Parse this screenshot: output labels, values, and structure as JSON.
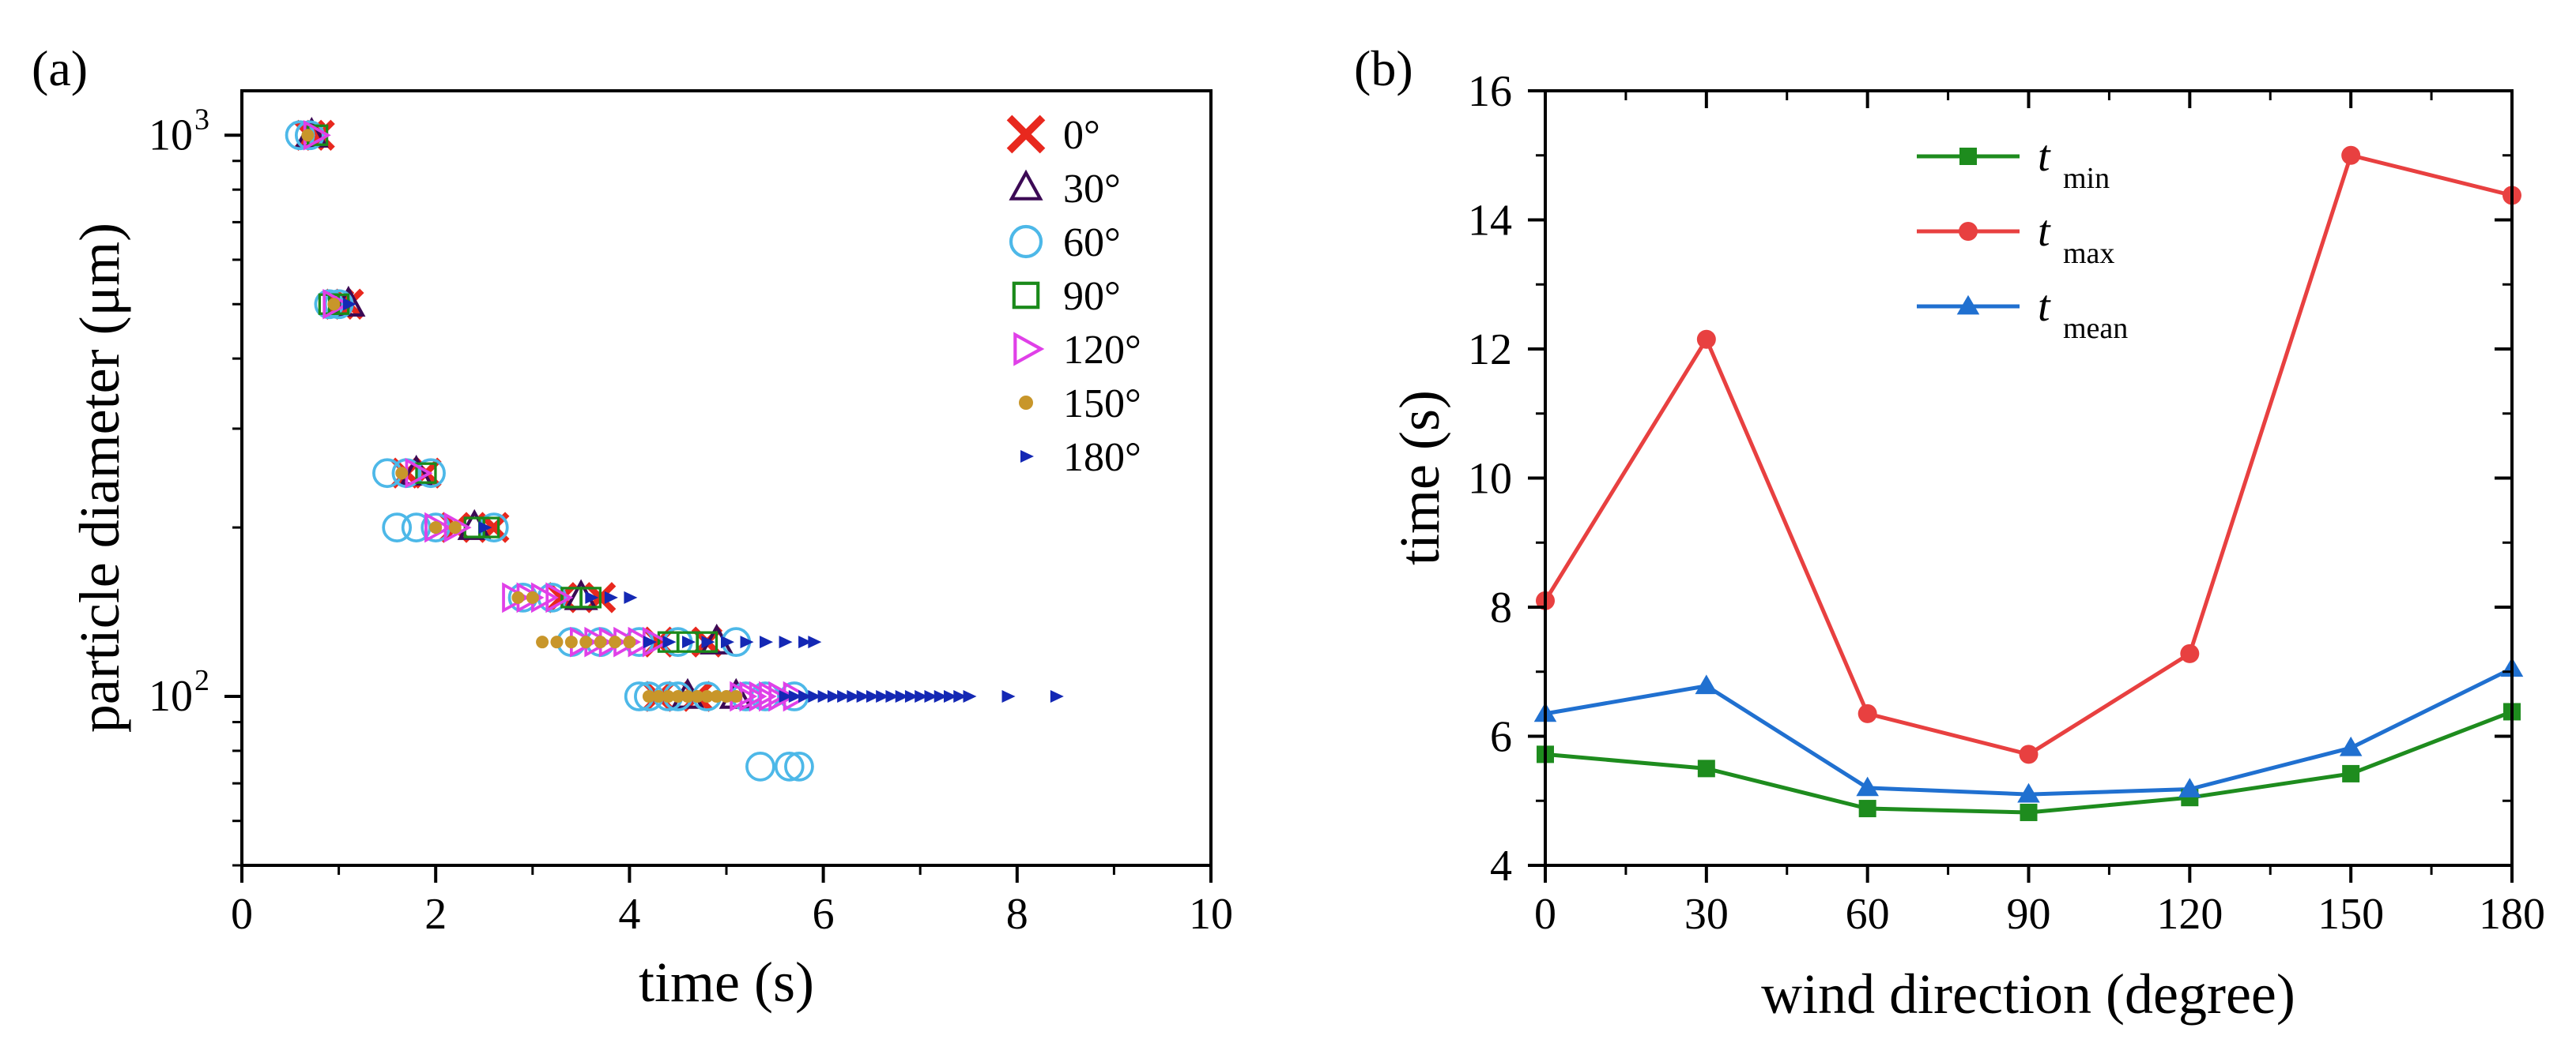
{
  "chart_data": [
    {
      "type": "scatter",
      "panel_label": "(a)",
      "xlabel": "time (s)",
      "ylabel": "particle diameter (μm)",
      "xlim": [
        0,
        10
      ],
      "ylim": [
        50,
        1200
      ],
      "yscale": "log",
      "xticks": [
        0,
        2,
        4,
        6,
        8,
        10
      ],
      "xtick_labels": [
        "0",
        "2",
        "4",
        "6",
        "8",
        "10"
      ],
      "yticks": [
        100,
        1000
      ],
      "ytick_labels": [
        [
          "10",
          "2"
        ],
        [
          "10",
          "3"
        ]
      ],
      "grid": false,
      "legend_position": "top-right",
      "series": [
        {
          "name": "0°",
          "marker": "x",
          "color": "#e8281e",
          "points": [
            [
              0.7,
              1000
            ],
            [
              0.8,
              1000
            ],
            [
              1.0,
              500
            ],
            [
              1.1,
              500
            ],
            [
              1.7,
              250
            ],
            [
              1.9,
              250
            ],
            [
              2.2,
              200
            ],
            [
              2.6,
              200
            ],
            [
              3.3,
              150
            ],
            [
              3.7,
              150
            ],
            [
              4.3,
              125
            ],
            [
              4.8,
              125
            ],
            [
              4.3,
              100
            ],
            [
              4.7,
              100
            ]
          ]
        },
        {
          "name": "30°",
          "marker": "triangle-open",
          "color": "#3c0a55",
          "points": [
            [
              0.72,
              1000
            ],
            [
              1.1,
              500
            ],
            [
              1.8,
              250
            ],
            [
              2.4,
              200
            ],
            [
              3.5,
              150
            ],
            [
              4.9,
              125
            ],
            [
              4.6,
              100
            ],
            [
              5.1,
              100
            ]
          ]
        },
        {
          "name": "60°",
          "marker": "circle-open",
          "color": "#4db8e8",
          "points": [
            [
              0.6,
              1000
            ],
            [
              0.7,
              1000
            ],
            [
              0.9,
              500
            ],
            [
              1.0,
              500
            ],
            [
              1.5,
              250
            ],
            [
              1.7,
              250
            ],
            [
              1.95,
              250
            ],
            [
              1.6,
              200
            ],
            [
              1.8,
              200
            ],
            [
              2.0,
              200
            ],
            [
              2.6,
              200
            ],
            [
              2.9,
              150
            ],
            [
              3.2,
              150
            ],
            [
              3.4,
              125
            ],
            [
              3.7,
              125
            ],
            [
              4.1,
              125
            ],
            [
              4.5,
              125
            ],
            [
              5.1,
              125
            ],
            [
              4.1,
              100
            ],
            [
              4.2,
              100
            ],
            [
              4.4,
              100
            ],
            [
              4.5,
              100
            ],
            [
              4.8,
              100
            ],
            [
              5.2,
              100
            ],
            [
              5.4,
              100
            ],
            [
              5.7,
              100
            ],
            [
              5.35,
              75
            ],
            [
              5.65,
              75
            ],
            [
              5.75,
              75
            ]
          ]
        },
        {
          "name": "90°",
          "marker": "square-open",
          "color": "#1a8a1a",
          "points": [
            [
              0.78,
              1000
            ],
            [
              0.9,
              500
            ],
            [
              1.0,
              500
            ],
            [
              1.9,
              250
            ],
            [
              2.4,
              200
            ],
            [
              2.55,
              200
            ],
            [
              3.4,
              150
            ],
            [
              3.6,
              150
            ],
            [
              4.4,
              125
            ],
            [
              4.6,
              125
            ],
            [
              4.8,
              125
            ]
          ]
        },
        {
          "name": "120°",
          "marker": "triangle-right-open",
          "color": "#e040e8",
          "points": [
            [
              0.75,
              1000
            ],
            [
              0.95,
              500
            ],
            [
              1.8,
              250
            ],
            [
              2.0,
              200
            ],
            [
              2.2,
              200
            ],
            [
              2.8,
              150
            ],
            [
              2.95,
              150
            ],
            [
              3.1,
              150
            ],
            [
              3.25,
              150
            ],
            [
              3.5,
              125
            ],
            [
              3.65,
              125
            ],
            [
              3.8,
              125
            ],
            [
              3.95,
              125
            ],
            [
              4.1,
              125
            ],
            [
              4.25,
              125
            ],
            [
              5.15,
              100
            ],
            [
              5.25,
              100
            ],
            [
              5.35,
              100
            ],
            [
              5.45,
              100
            ],
            [
              5.55,
              100
            ],
            [
              5.7,
              100
            ]
          ]
        },
        {
          "name": "150°",
          "marker": "dot",
          "color": "#c8962a",
          "points": [
            [
              0.68,
              1000
            ],
            [
              0.95,
              500
            ],
            [
              1.65,
              250
            ],
            [
              2.0,
              200
            ],
            [
              2.2,
              200
            ],
            [
              2.85,
              150
            ],
            [
              3.0,
              150
            ],
            [
              3.1,
              125
            ],
            [
              3.25,
              125
            ],
            [
              3.4,
              125
            ],
            [
              3.55,
              125
            ],
            [
              3.7,
              125
            ],
            [
              3.85,
              125
            ],
            [
              4.0,
              125
            ],
            [
              4.2,
              100
            ],
            [
              4.3,
              100
            ],
            [
              4.4,
              100
            ],
            [
              4.5,
              100
            ],
            [
              4.6,
              100
            ],
            [
              4.7,
              100
            ],
            [
              4.8,
              100
            ],
            [
              4.9,
              100
            ],
            [
              5.0,
              100
            ],
            [
              5.1,
              100
            ]
          ]
        },
        {
          "name": "180°",
          "marker": "triangle-right-filled",
          "color": "#1428b4",
          "points": [
            [
              1.1,
              500
            ],
            [
              2.5,
              200
            ],
            [
              3.6,
              150
            ],
            [
              3.8,
              150
            ],
            [
              4.0,
              150
            ],
            [
              4.2,
              125
            ],
            [
              4.4,
              125
            ],
            [
              4.6,
              125
            ],
            [
              4.8,
              125
            ],
            [
              5.0,
              125
            ],
            [
              5.2,
              125
            ],
            [
              5.4,
              125
            ],
            [
              5.6,
              125
            ],
            [
              5.8,
              125
            ],
            [
              5.9,
              125
            ],
            [
              5.6,
              100
            ],
            [
              5.7,
              100
            ],
            [
              5.8,
              100
            ],
            [
              5.9,
              100
            ],
            [
              6.0,
              100
            ],
            [
              6.1,
              100
            ],
            [
              6.2,
              100
            ],
            [
              6.3,
              100
            ],
            [
              6.4,
              100
            ],
            [
              6.5,
              100
            ],
            [
              6.6,
              100
            ],
            [
              6.7,
              100
            ],
            [
              6.8,
              100
            ],
            [
              6.9,
              100
            ],
            [
              7.0,
              100
            ],
            [
              7.1,
              100
            ],
            [
              7.2,
              100
            ],
            [
              7.3,
              100
            ],
            [
              7.4,
              100
            ],
            [
              7.5,
              100
            ],
            [
              7.9,
              100
            ],
            [
              8.4,
              100
            ]
          ]
        }
      ]
    },
    {
      "type": "line",
      "panel_label": "(b)",
      "xlabel": "wind direction (degree)",
      "ylabel": "time (s)",
      "xlim": [
        0,
        180
      ],
      "ylim": [
        4,
        16
      ],
      "xticks": [
        0,
        30,
        60,
        90,
        120,
        150,
        180
      ],
      "xtick_labels": [
        "0",
        "30",
        "60",
        "90",
        "120",
        "150",
        "180"
      ],
      "yticks": [
        4,
        6,
        8,
        10,
        12,
        14,
        16
      ],
      "ytick_labels": [
        "4",
        "6",
        "8",
        "10",
        "12",
        "14",
        "16"
      ],
      "grid": false,
      "legend_position": "top-left",
      "x": [
        0,
        30,
        60,
        90,
        120,
        150,
        180
      ],
      "series": [
        {
          "name": "t",
          "subscript": "min",
          "marker": "square",
          "color": "#1e8c1e",
          "values": [
            5.72,
            5.5,
            4.88,
            4.82,
            5.05,
            5.42,
            6.38
          ]
        },
        {
          "name": "t",
          "subscript": "max",
          "marker": "circle",
          "color": "#e84040",
          "values": [
            8.1,
            12.15,
            6.35,
            5.72,
            7.28,
            15.0,
            14.38
          ]
        },
        {
          "name": "t",
          "subscript": "mean",
          "marker": "triangle",
          "color": "#2070d0",
          "values": [
            6.35,
            6.78,
            5.2,
            5.1,
            5.18,
            5.82,
            7.05
          ]
        }
      ]
    }
  ]
}
